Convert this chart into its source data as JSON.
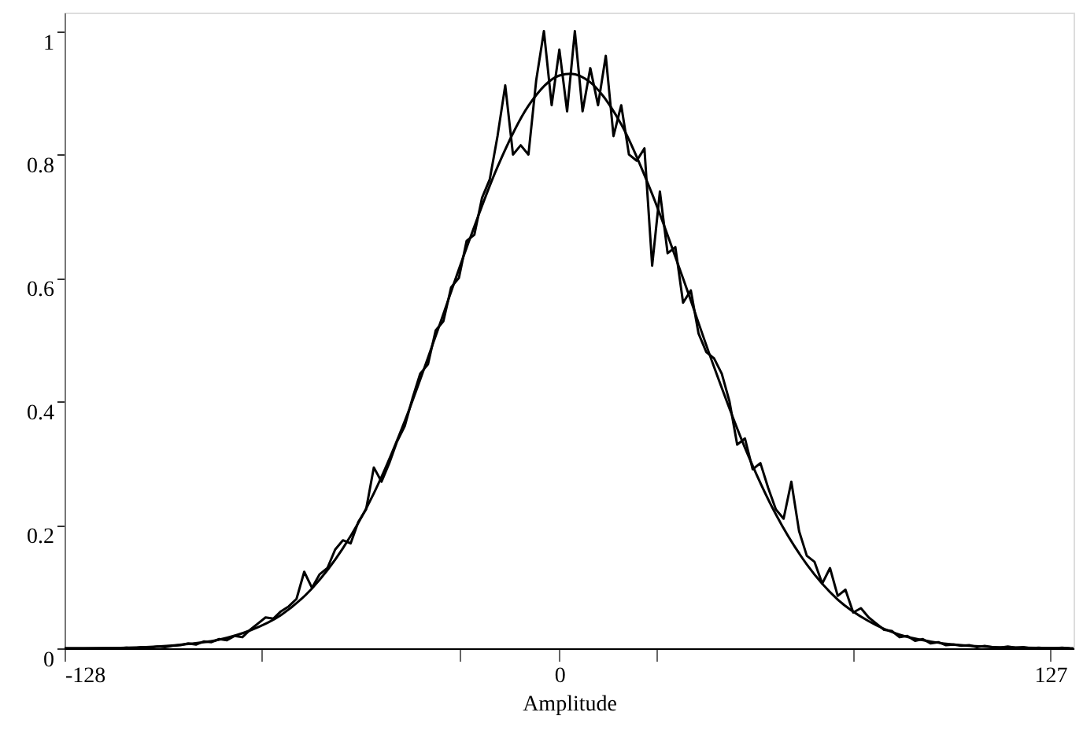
{
  "chart_data": {
    "type": "line",
    "xlabel": "Amplitude",
    "xlim": [
      -128,
      133
    ],
    "ylim": [
      0,
      1.03
    ],
    "xticks": [
      -128,
      {
        "value": -77,
        "label": null
      },
      {
        "value": -26,
        "label": null
      },
      0,
      {
        "value": 25,
        "label": null
      },
      {
        "value": 76,
        "label": null
      },
      127
    ],
    "yticks": [
      0,
      0.2,
      0.4,
      0.6,
      0.8,
      1
    ],
    "grid": false,
    "marker": "none",
    "line_style": "solid",
    "series": [
      {
        "color": "#000000",
        "x": [
          -128,
          -126,
          -124,
          -122,
          -120,
          -118,
          -116,
          -114,
          -112,
          -110,
          -108,
          -106,
          -104,
          -102,
          -100,
          -98,
          -96,
          -94,
          -92,
          -90,
          -88,
          -86,
          -84,
          -82,
          -80,
          -78,
          -76,
          -74,
          -72,
          -70,
          -68,
          -66,
          -64,
          -62,
          -60,
          -58,
          -56,
          -54,
          -52,
          -50,
          -48,
          -46,
          -44,
          -42,
          -40,
          -38,
          -36,
          -34,
          -32,
          -30,
          -28,
          -26,
          -24,
          -22,
          -20,
          -18,
          -16,
          -14,
          -12,
          -10,
          -8,
          -6,
          -4,
          -2,
          0,
          2,
          4,
          6,
          8,
          10,
          12,
          14,
          16,
          18,
          20,
          22,
          24,
          26,
          28,
          30,
          32,
          34,
          36,
          38,
          40,
          42,
          44,
          46,
          48,
          50,
          52,
          54,
          56,
          58,
          60,
          62,
          64,
          66,
          68,
          70,
          72,
          74,
          76,
          78,
          80,
          82,
          84,
          86,
          88,
          90,
          92,
          94,
          96,
          98,
          100,
          102,
          104,
          106,
          108,
          110,
          112,
          114,
          116,
          118,
          120,
          122,
          124,
          126,
          128,
          130,
          132
        ],
        "values": [
          0,
          0,
          0,
          0,
          0,
          0,
          0,
          0,
          0.001,
          0,
          0.002,
          0.001,
          0.003,
          0.002,
          0.004,
          0.005,
          0.008,
          0.006,
          0.011,
          0.01,
          0.015,
          0.013,
          0.02,
          0.018,
          0.03,
          0.04,
          0.05,
          0.048,
          0.06,
          0.068,
          0.08,
          0.124,
          0.098,
          0.12,
          0.13,
          0.16,
          0.175,
          0.17,
          0.205,
          0.225,
          0.293,
          0.27,
          0.3,
          0.335,
          0.36,
          0.405,
          0.445,
          0.46,
          0.515,
          0.53,
          0.585,
          0.6,
          0.66,
          0.67,
          0.73,
          0.76,
          0.83,
          0.912,
          0.8,
          0.815,
          0.8,
          0.92,
          1.0,
          0.88,
          0.97,
          0.87,
          1.0,
          0.87,
          0.94,
          0.88,
          0.96,
          0.83,
          0.88,
          0.8,
          0.79,
          0.81,
          0.62,
          0.74,
          0.64,
          0.65,
          0.56,
          0.58,
          0.51,
          0.48,
          0.47,
          0.445,
          0.4,
          0.33,
          0.34,
          0.29,
          0.3,
          0.26,
          0.225,
          0.21,
          0.27,
          0.19,
          0.15,
          0.14,
          0.105,
          0.13,
          0.085,
          0.095,
          0.058,
          0.065,
          0.05,
          0.04,
          0.03,
          0.028,
          0.018,
          0.02,
          0.012,
          0.015,
          0.008,
          0.01,
          0.005,
          0.006,
          0.004,
          0.005,
          0.002,
          0.004,
          0.002,
          0.001,
          0.003,
          0.001,
          0.002,
          0,
          0.001,
          0,
          0,
          0.001,
          0
        ]
      },
      {
        "color": "#000000",
        "x": [
          -128,
          -112,
          -104,
          -96,
          -88,
          -80,
          -72,
          -64,
          -56,
          -48,
          -40,
          -32,
          -24,
          -16,
          -8,
          0,
          3,
          8,
          16,
          24,
          32,
          40,
          48,
          56,
          64,
          72,
          80,
          88,
          96,
          104,
          112,
          120,
          133
        ],
        "values": [
          0,
          0.001,
          0.003,
          0.007,
          0.014,
          0.029,
          0.054,
          0.097,
          0.162,
          0.251,
          0.368,
          0.506,
          0.649,
          0.78,
          0.879,
          0.928,
          0.931,
          0.917,
          0.849,
          0.736,
          0.599,
          0.456,
          0.325,
          0.217,
          0.136,
          0.079,
          0.044,
          0.022,
          0.011,
          0.005,
          0.002,
          0.001,
          0
        ]
      }
    ]
  }
}
